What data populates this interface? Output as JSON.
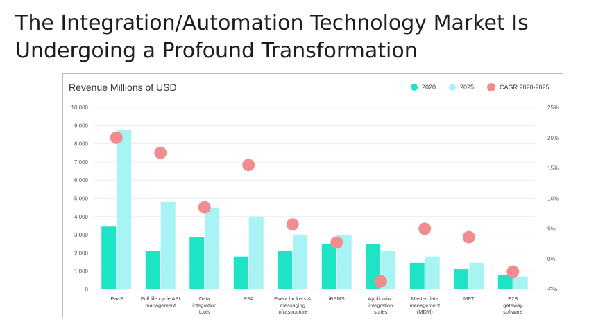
{
  "slide": {
    "title_line1": "The Integration/Automation Technology Market Is",
    "title_line2": "Undergoing a Profound Transformation"
  },
  "chart_data": {
    "type": "bar",
    "title": "Revenue Millions of USD",
    "categories": [
      [
        "iPaaS"
      ],
      [
        "Full life cycle API",
        "management"
      ],
      [
        "Data",
        "integration",
        "tools"
      ],
      [
        "RPA"
      ],
      [
        "Event brokers &",
        "messaging",
        "infrastructure"
      ],
      [
        "iBPMS"
      ],
      [
        "Application",
        "integration",
        "suites"
      ],
      [
        "Master data",
        "management",
        "(MDM)"
      ],
      [
        "MFT"
      ],
      [
        "B2B",
        "gateway",
        "software"
      ]
    ],
    "series": [
      {
        "name": "2020",
        "type": "bar",
        "axis": "left",
        "color": "#1ee3c4",
        "values": [
          3450,
          2100,
          2850,
          1800,
          2100,
          2480,
          2480,
          1450,
          1100,
          800
        ]
      },
      {
        "name": "2025",
        "type": "bar",
        "axis": "left",
        "color": "#a8f3f3",
        "values": [
          8750,
          4800,
          4500,
          4000,
          3000,
          3000,
          2100,
          1800,
          1450,
          700
        ]
      },
      {
        "name": "CAGR 2020-2025",
        "type": "scatter",
        "axis": "right",
        "color": "#f28d8f",
        "values": [
          20.0,
          17.5,
          8.5,
          15.5,
          5.7,
          2.7,
          -3.7,
          5.0,
          3.6,
          -2.1
        ]
      }
    ],
    "y_left": {
      "min": 0,
      "max": 10000,
      "step": 1000,
      "ticks": [
        "0",
        "1,000",
        "2,000",
        "3,000",
        "4,000",
        "5,000",
        "6,000",
        "7,000",
        "8,000",
        "9,000",
        "10,000"
      ]
    },
    "y_right": {
      "min": -5,
      "max": 25,
      "step": 5,
      "ticks": [
        "-5%",
        "0%",
        "5%",
        "10%",
        "15%",
        "20%",
        "25%"
      ]
    },
    "legend": [
      "2020",
      "2025",
      "CAGR 2020-2025"
    ],
    "legend_position": "top-right",
    "grid": "horizontal"
  }
}
